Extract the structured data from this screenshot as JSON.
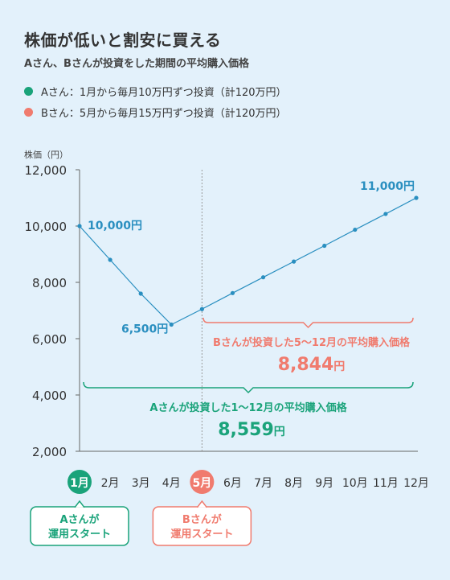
{
  "header": {
    "title": "株価が低いと割安に買える",
    "subtitle": "Aさん、Bさんが投資をした期間の平均購入価格"
  },
  "legend": [
    {
      "label": "Aさん：1月から毎月10万円ずつ投資（計120万円）",
      "color": "#1aa37a"
    },
    {
      "label": "Bさん：5月から毎月15万円ずつ投資（計120万円）",
      "color": "#f07b6e"
    }
  ],
  "colors": {
    "line": "#2a8fc0",
    "a": "#1aa37a",
    "b": "#f07b6e",
    "axis": "#666"
  },
  "chart_data": {
    "type": "line",
    "ylabel": "株価（円）",
    "ylim": [
      2000,
      12000
    ],
    "yticks": [
      "12,000",
      "10,000",
      "8,000",
      "6,000",
      "4,000",
      "2,000"
    ],
    "ytick_values": [
      12000,
      10000,
      8000,
      6000,
      4000,
      2000
    ],
    "categories": [
      "1月",
      "2月",
      "3月",
      "4月",
      "5月",
      "6月",
      "7月",
      "8月",
      "9月",
      "10月",
      "11月",
      "12月"
    ],
    "values": [
      10000,
      8800,
      7600,
      6500,
      7050,
      7620,
      8180,
      8740,
      9300,
      9870,
      10430,
      11000
    ],
    "point_labels": [
      {
        "index": 0,
        "text": "10,000円"
      },
      {
        "index": 3,
        "text": "6,500円"
      },
      {
        "index": 11,
        "text": "11,000円"
      }
    ],
    "b_bracket": {
      "label": "Bさんが投資した5～12月の平均購入価格",
      "value": "8,844",
      "unit": "円"
    },
    "a_bracket": {
      "label": "Aさんが投資した1～12月の平均購入価格",
      "value": "8,559",
      "unit": "円"
    },
    "a_start": "Aさんが\n運用スタート",
    "b_start": "Bさんが\n運用スタート"
  }
}
